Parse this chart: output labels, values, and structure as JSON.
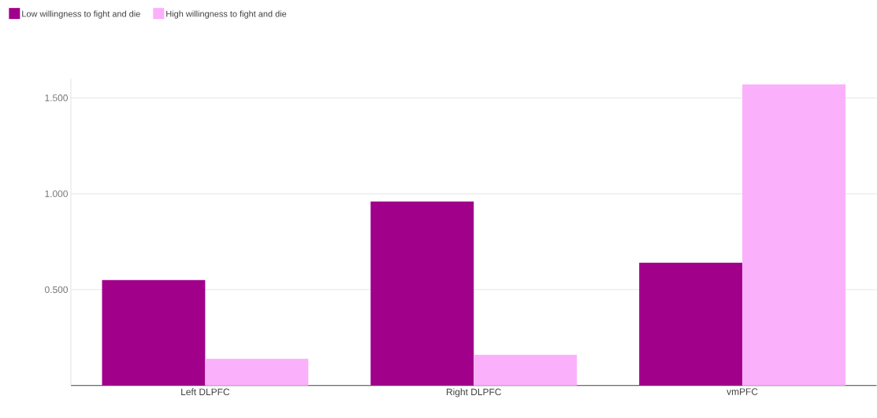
{
  "chart_data": {
    "type": "bar",
    "categories": [
      "Left DLPFC",
      "Right DLPFC",
      "vmPFC"
    ],
    "series": [
      {
        "name": "Low willingness to fight and die",
        "color": "#a0008a",
        "values": [
          0.55,
          0.96,
          0.64
        ]
      },
      {
        "name": "High willingness to fight and die",
        "color": "#fbb0fb",
        "values": [
          0.14,
          0.16,
          1.57
        ]
      }
    ],
    "ylim": [
      0,
      1.6
    ],
    "yticks": [
      {
        "value": 0.5,
        "label": "0.500"
      },
      {
        "value": 1.0,
        "label": "1.000"
      },
      {
        "value": 1.5,
        "label": "1.500"
      }
    ],
    "grid": "y",
    "legend": "top left"
  }
}
